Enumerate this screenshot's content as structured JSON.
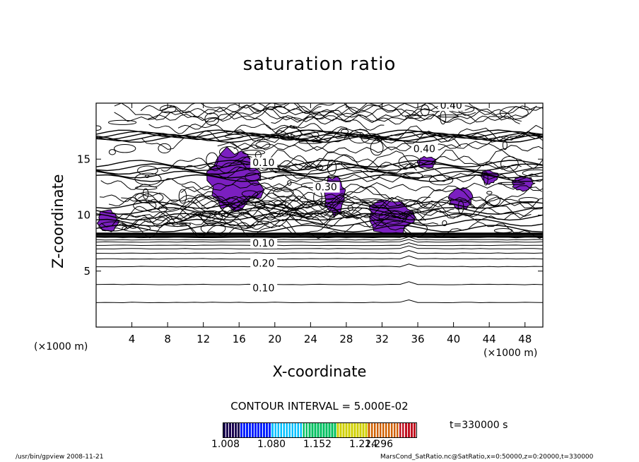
{
  "chart_data": {
    "type": "contour",
    "title": "saturation ratio",
    "xlabel": "X-coordinate",
    "ylabel": "Z-coordinate",
    "x_unit": "(×1000 m)",
    "xlim": [
      0,
      50
    ],
    "ylim": [
      0,
      20
    ],
    "x_ticks": [
      "4",
      "8",
      "12",
      "16",
      "20",
      "24",
      "28",
      "32",
      "36",
      "40",
      "44",
      "48"
    ],
    "y_ticks": [
      "5",
      "10",
      "15"
    ],
    "contour_labels": [
      "0.40",
      "0.30",
      "0.40",
      "0.10",
      "0.10",
      "0.20",
      "0.10"
    ],
    "contour_interval_text": "CONTOUR INTERVAL = 5.000E-02",
    "colorbar_ticks": [
      "1.008",
      "1.080",
      "1.152",
      "1.224",
      "1.296"
    ],
    "colorbar_colors": [
      "#1a0050",
      "#0020ff",
      "#00c0ff",
      "#00c060",
      "#d0d000",
      "#d06000",
      "#c01020"
    ],
    "fill_color": "#7b1fc0",
    "time_label": "t=330000 s",
    "footer_left": "/usr/bin/gpview   2008-11-21",
    "footer_right": "MarsCond_SatRatio.nc@SatRatio,x=0:50000,z=0:20000,t=330000",
    "horizontal_contour_levels_z": [
      2.2,
      3.8,
      5.4,
      6.1,
      6.6,
      7.0,
      7.3,
      7.6,
      7.8,
      8.0
    ],
    "supersaturated_regions": [
      {
        "x": [
          12.5,
          18.5
        ],
        "z": [
          10.3,
          15.9
        ]
      },
      {
        "x": [
          25.5,
          27.8
        ],
        "z": [
          10.0,
          13.5
        ]
      },
      {
        "x": [
          30.5,
          35.5
        ],
        "z": [
          8.2,
          11.5
        ]
      },
      {
        "x": [
          39.5,
          42.0
        ],
        "z": [
          10.5,
          12.5
        ]
      },
      {
        "x": [
          43.0,
          45.0
        ],
        "z": [
          12.8,
          14.0
        ]
      },
      {
        "x": [
          46.5,
          49.0
        ],
        "z": [
          12.2,
          13.5
        ]
      },
      {
        "x": [
          0.2,
          2.5
        ],
        "z": [
          8.6,
          10.5
        ]
      },
      {
        "x": [
          36.0,
          38.0
        ],
        "z": [
          14.2,
          15.2
        ]
      }
    ]
  }
}
